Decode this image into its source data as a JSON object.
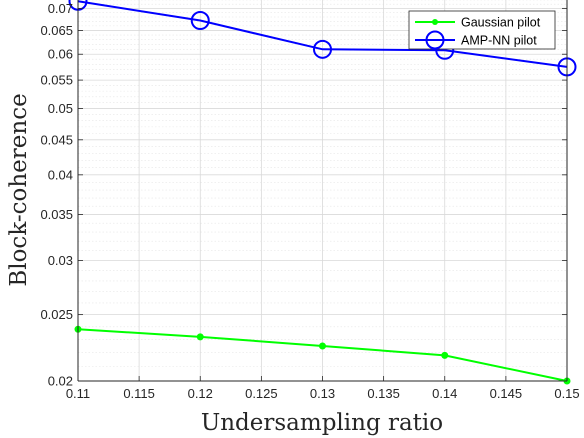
{
  "chart_data": {
    "type": "line",
    "xlabel": "Undersampling ratio",
    "ylabel": "Block-coherence",
    "x": [
      0.11,
      0.12,
      0.13,
      0.14,
      0.15
    ],
    "xlim": [
      0.11,
      0.15
    ],
    "ylim": [
      0.02,
      0.072
    ],
    "yscale": "log",
    "grid": true,
    "minor_grid": true,
    "legend_position": "top-right",
    "x_ticks": [
      "0.11",
      "0.115",
      "0.12",
      "0.125",
      "0.13",
      "0.135",
      "0.14",
      "0.145",
      "0.15"
    ],
    "y_ticks": [
      "0.02",
      "0.025",
      "0.03",
      "0.035",
      "0.04",
      "0.045",
      "0.05",
      "0.055",
      "0.06",
      "0.065",
      "0.07"
    ],
    "series": [
      {
        "name": "Gaussian pilot",
        "color": "#00ff00",
        "marker": "dot",
        "values": [
          0.0238,
          0.0232,
          0.0225,
          0.0218,
          0.02
        ]
      },
      {
        "name": "AMP-NN pilot",
        "color": "#0000ff",
        "marker": "circle",
        "values": [
          0.0717,
          0.0672,
          0.061,
          0.0608,
          0.0575
        ]
      }
    ]
  }
}
